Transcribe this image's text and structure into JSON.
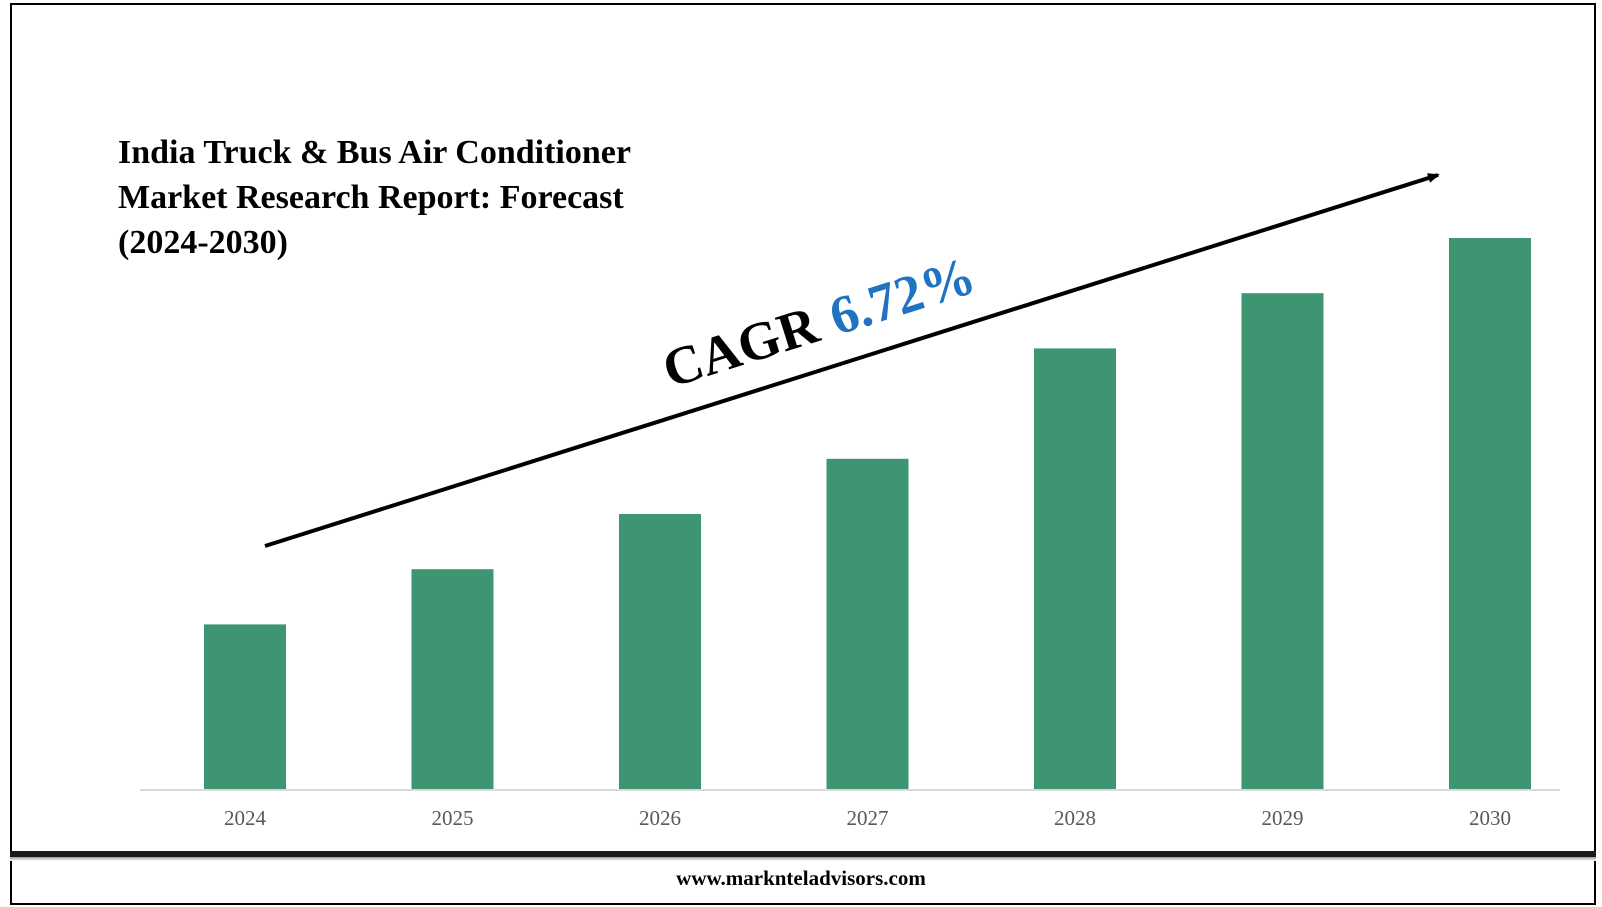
{
  "title_lines": [
    "India Truck & Bus Air Conditioner",
    "Market Research Report: Forecast",
    "(2024-2030)"
  ],
  "cagr": {
    "label": "CAGR",
    "value": "6.72%",
    "label_color": "#000000",
    "value_color": "#1f73c0"
  },
  "footer": {
    "url": "www.marknteladvisors.com"
  },
  "colors": {
    "bar": "#3d9671",
    "axis": "#d9d9d9",
    "arrow": "#000000"
  },
  "chart_data": {
    "type": "bar",
    "categories": [
      "2024",
      "2025",
      "2026",
      "2027",
      "2028",
      "2029",
      "2030"
    ],
    "values": [
      30,
      40,
      50,
      60,
      80,
      90,
      100
    ],
    "ylim": [
      0,
      100
    ],
    "xlabel": "",
    "ylabel": "",
    "grid": false,
    "legend": "none"
  }
}
